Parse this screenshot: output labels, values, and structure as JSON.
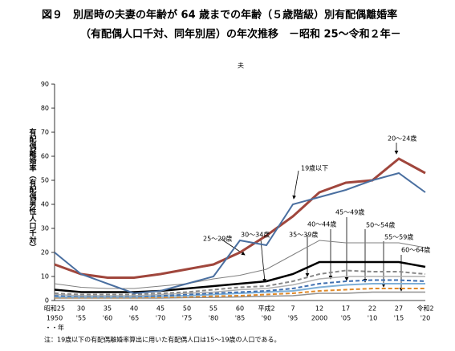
{
  "chart_data": {
    "type": "line",
    "title": "図９　別居時の夫妻の年齢が 64 歳までの年齢（５歳階級）別有配偶離婚率",
    "subtitle": "（有配偶人口千対、同年別居）の年次推移　－昭和 25～令和２年－",
    "panel_label": "夫",
    "y_label": "有配偶離婚率（有配偶男性人口千対）",
    "x_unit": "・・年",
    "note": "注：19歳以下の有配偶離婚率算出に用いた有配偶人口は15～19歳の人口である。",
    "categories": [
      "昭和25",
      "30",
      "35",
      "40",
      "45",
      "50",
      "55",
      "60",
      "平成2",
      "7",
      "12",
      "17",
      "22",
      "27",
      "令和2"
    ],
    "categories_line2": [
      "1950",
      "'55",
      "'60",
      "'65",
      "'70",
      "'75",
      "'80",
      "'85",
      "'90",
      "'95",
      "2000",
      "'05",
      "'10",
      "'15",
      "'20"
    ],
    "ylim": [
      0,
      90
    ],
    "yticks": [
      0,
      10,
      20,
      30,
      40,
      50,
      60,
      70,
      80,
      90
    ],
    "series": [
      {
        "name": "19歳以下",
        "color": "#4a6fa0",
        "width": 2,
        "dash": "",
        "values": [
          20,
          11,
          7,
          3,
          4,
          7,
          10,
          25,
          23,
          40,
          43,
          46,
          50,
          53,
          45
        ]
      },
      {
        "name": "20～24歳",
        "color": "#a0463c",
        "width": 3,
        "dash": "",
        "values": [
          15,
          11,
          9.5,
          9.5,
          11,
          13,
          15,
          20,
          27,
          35,
          45,
          49,
          50,
          59,
          53
        ]
      },
      {
        "name": "25～29歳",
        "color": "#808080",
        "width": 1,
        "dash": "",
        "values": [
          7,
          5.5,
          5,
          5,
          6,
          7,
          9,
          10.5,
          13,
          19,
          25,
          24,
          24,
          24,
          22
        ]
      },
      {
        "name": "30～34歳",
        "color": "#000000",
        "width": 2.5,
        "dash": "",
        "values": [
          4.5,
          3.5,
          3.5,
          3.5,
          4,
          5,
          6,
          7,
          8,
          11,
          16,
          16,
          16,
          16,
          14
        ]
      },
      {
        "name": "35～39歳",
        "color": "#888888",
        "width": 2,
        "dash": "5 3",
        "values": [
          3,
          2.5,
          2.5,
          2.5,
          3,
          3.5,
          4.5,
          5.5,
          6,
          8,
          11,
          12.5,
          12,
          12,
          11
        ]
      },
      {
        "name": "40～44歳",
        "color": "#b0b0b0",
        "width": 1.5,
        "dash": "",
        "values": [
          2.5,
          2,
          2,
          2,
          2.5,
          3,
          3.5,
          4.5,
          5,
          6.5,
          9,
          10,
          10,
          10,
          10
        ]
      },
      {
        "name": "45～49歳",
        "color": "#3f6fb0",
        "width": 2,
        "dash": "5 3",
        "values": [
          2,
          1.8,
          1.8,
          1.8,
          2,
          2.5,
          3,
          3.5,
          4,
          5,
          7,
          8,
          8.5,
          8.5,
          8
        ]
      },
      {
        "name": "50～54歳",
        "color": "#7fb0d8",
        "width": 2,
        "dash": "",
        "values": [
          1.5,
          1.5,
          1.5,
          1.5,
          1.8,
          2,
          2.5,
          3,
          3.5,
          4,
          5.5,
          6.5,
          7,
          7,
          7
        ]
      },
      {
        "name": "55～59歳",
        "color": "#e08a2a",
        "width": 2,
        "dash": "5 3",
        "values": [
          1.2,
          1.2,
          1.2,
          1.2,
          1.3,
          1.5,
          1.8,
          2,
          2.5,
          3,
          4,
          4.5,
          5,
          5,
          5
        ]
      },
      {
        "name": "60～64歳",
        "color": "#909090",
        "width": 1.5,
        "dash": "",
        "values": [
          1,
          1,
          1,
          1,
          1,
          1.2,
          1.3,
          1.5,
          1.8,
          2,
          3,
          3,
          3.5,
          3.5,
          3.5
        ]
      }
    ]
  }
}
